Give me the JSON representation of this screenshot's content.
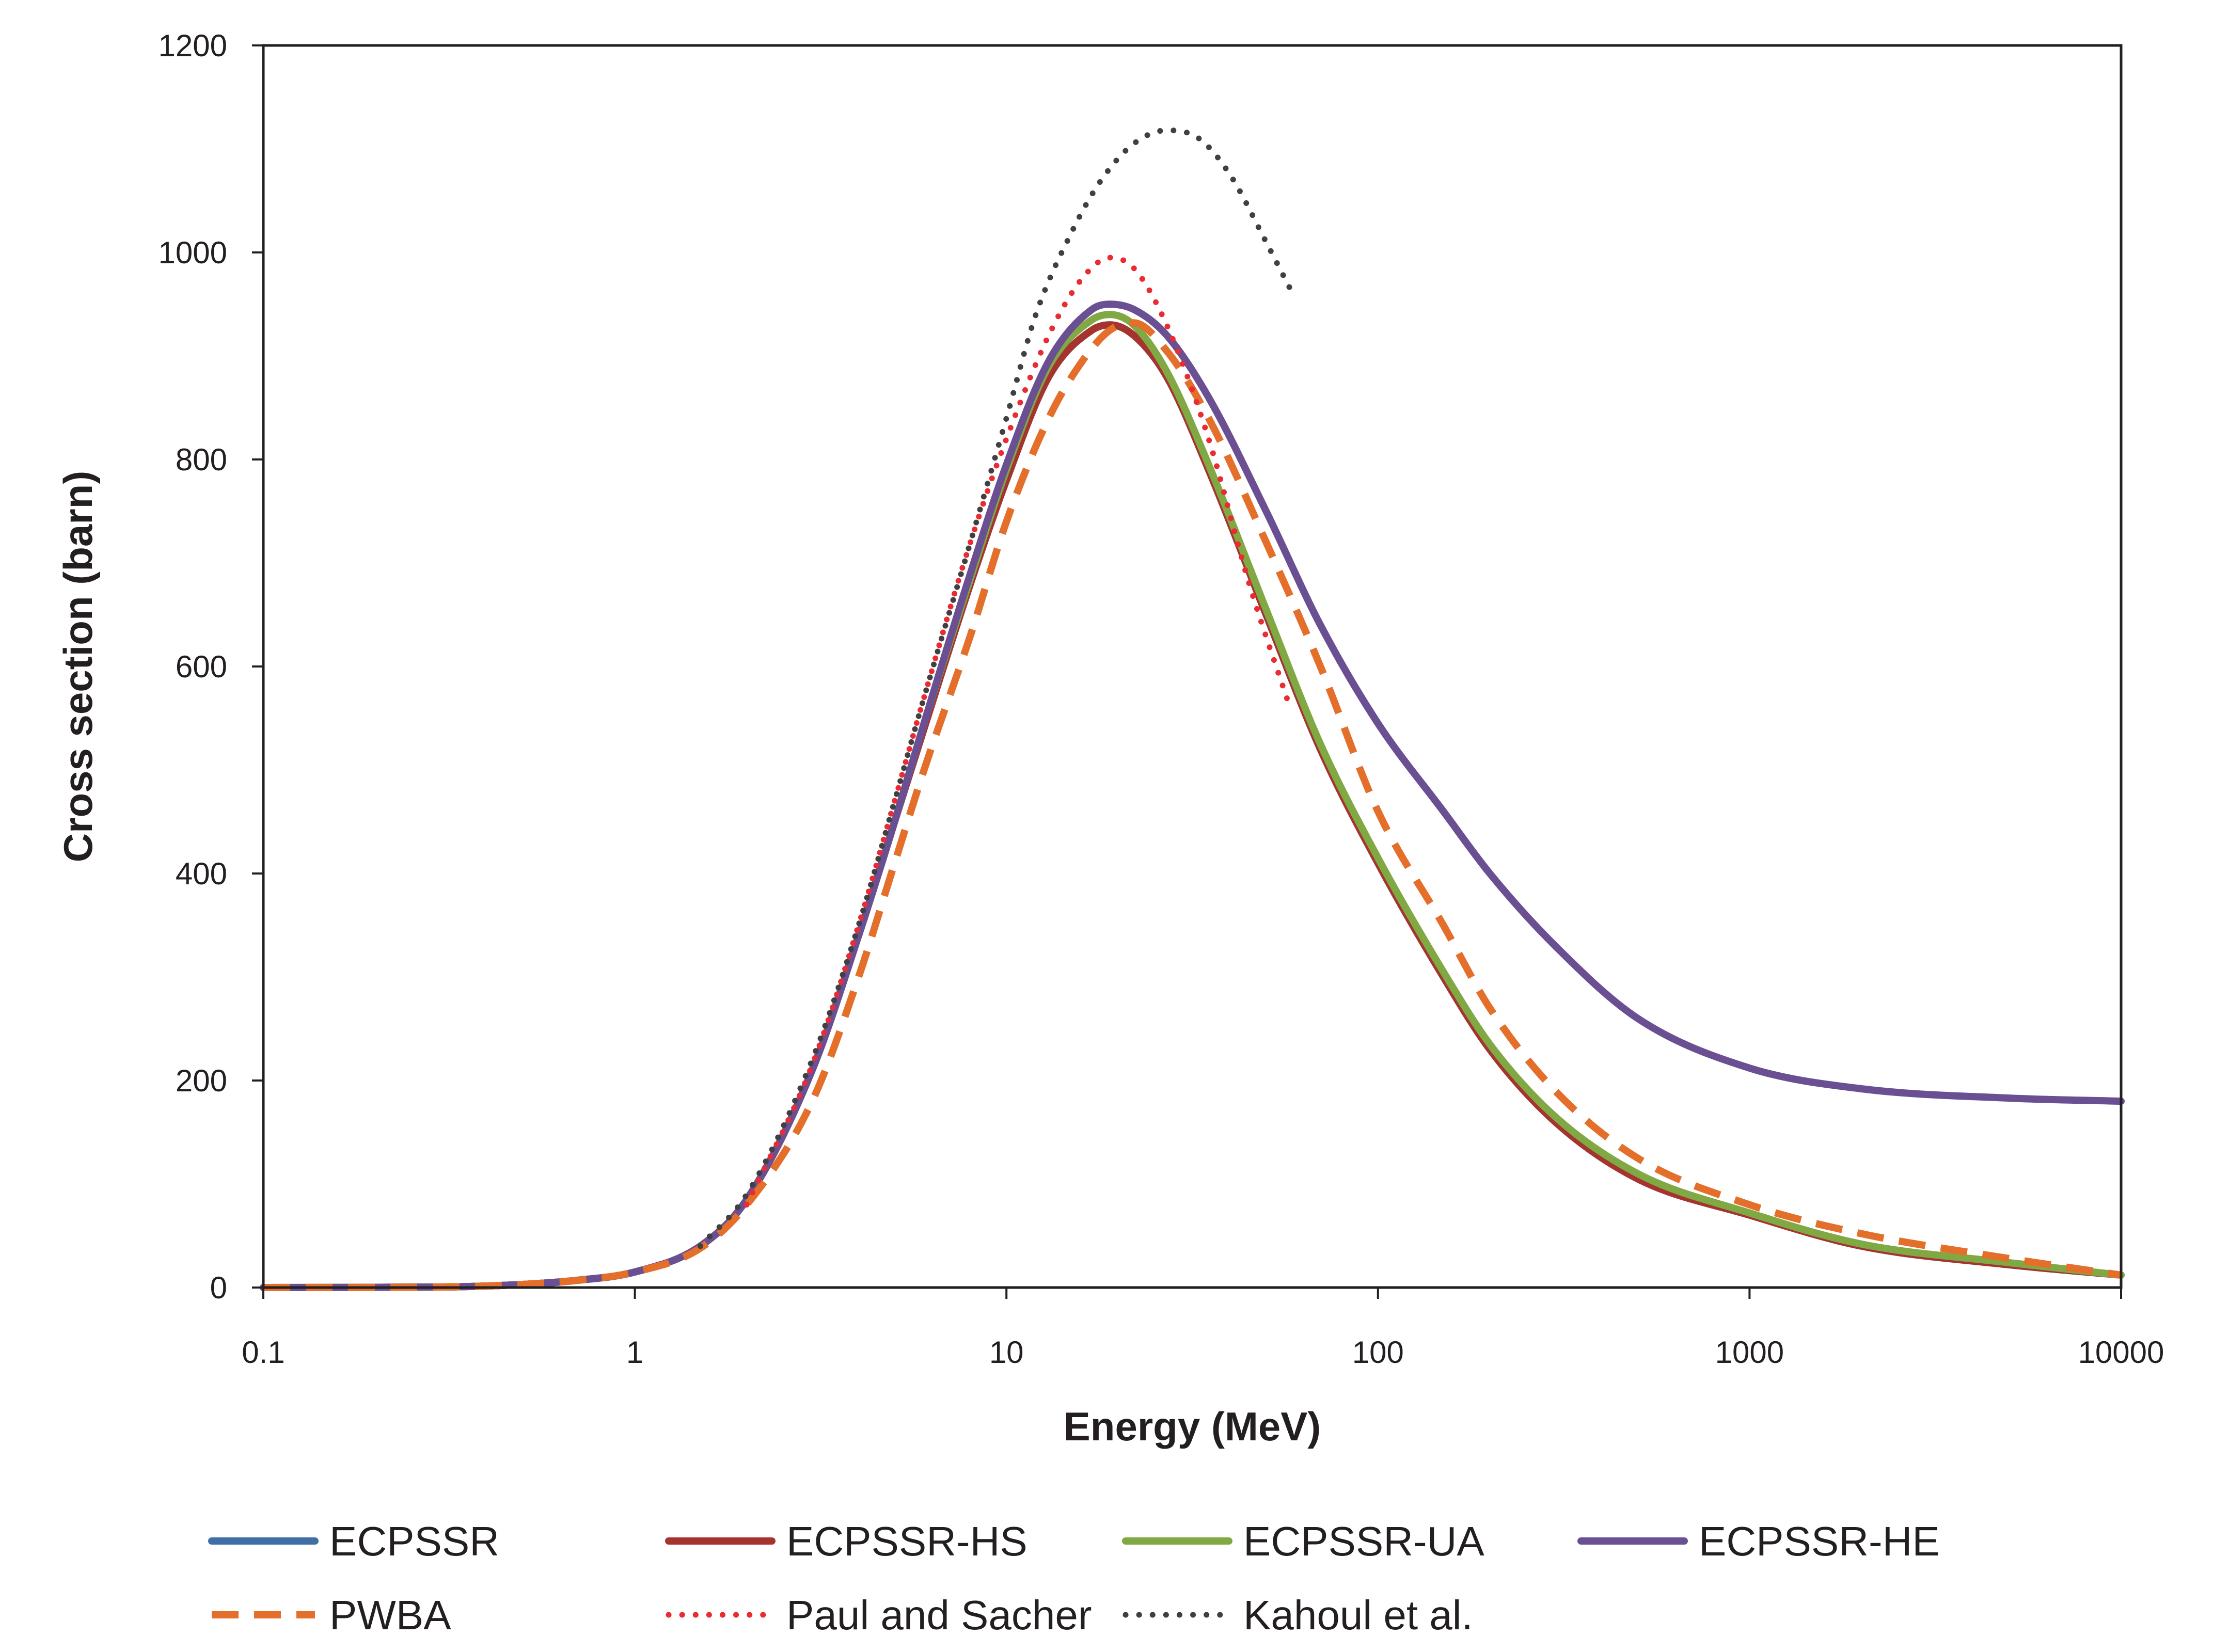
{
  "chart_data": {
    "type": "line",
    "xlabel": "Energy (MeV)",
    "ylabel": "Cross section (barn)",
    "x_scale": "log",
    "xlim": [
      0.1,
      10000
    ],
    "ylim": [
      0,
      1200
    ],
    "x_ticks": [
      "0.1",
      "1",
      "10",
      "100",
      "1000",
      "10000"
    ],
    "y_ticks": [
      "0",
      "200",
      "400",
      "600",
      "800",
      "1000",
      "1200"
    ],
    "grid": false,
    "legend_position": "bottom",
    "series": [
      {
        "name": "ECPSSR",
        "color": "#3f6fa5",
        "style": "solid",
        "points": [
          [
            0.1,
            0
          ],
          [
            0.3,
            0.5
          ],
          [
            0.5,
            3
          ],
          [
            0.7,
            7
          ],
          [
            1,
            15
          ],
          [
            1.5,
            40
          ],
          [
            2,
            85
          ],
          [
            3,
            210
          ],
          [
            4,
            340
          ],
          [
            5,
            450
          ],
          [
            6,
            540
          ],
          [
            8,
            680
          ],
          [
            10,
            780
          ],
          [
            13,
            880
          ],
          [
            17,
            925
          ],
          [
            19,
            930
          ],
          [
            22,
            920
          ],
          [
            27,
            880
          ],
          [
            35,
            790
          ],
          [
            50,
            650
          ],
          [
            70,
            520
          ],
          [
            100,
            410
          ],
          [
            150,
            300
          ],
          [
            200,
            230
          ],
          [
            300,
            160
          ],
          [
            500,
            105
          ],
          [
            1000,
            70
          ],
          [
            2000,
            40
          ],
          [
            5000,
            22
          ],
          [
            10000,
            12
          ]
        ]
      },
      {
        "name": "ECPSSR-HS",
        "color": "#a5342f",
        "style": "solid",
        "points": [
          [
            0.1,
            0
          ],
          [
            0.3,
            0.5
          ],
          [
            0.5,
            3
          ],
          [
            0.7,
            7
          ],
          [
            1,
            15
          ],
          [
            1.5,
            40
          ],
          [
            2,
            85
          ],
          [
            3,
            210
          ],
          [
            4,
            340
          ],
          [
            5,
            450
          ],
          [
            6,
            540
          ],
          [
            8,
            680
          ],
          [
            10,
            780
          ],
          [
            13,
            880
          ],
          [
            17,
            925
          ],
          [
            19,
            930
          ],
          [
            22,
            920
          ],
          [
            27,
            880
          ],
          [
            35,
            790
          ],
          [
            50,
            650
          ],
          [
            70,
            520
          ],
          [
            100,
            410
          ],
          [
            150,
            300
          ],
          [
            200,
            230
          ],
          [
            300,
            160
          ],
          [
            500,
            105
          ],
          [
            1000,
            70
          ],
          [
            2000,
            40
          ],
          [
            5000,
            22
          ],
          [
            10000,
            12
          ]
        ]
      },
      {
        "name": "ECPSSR-UA",
        "color": "#80a843",
        "style": "solid",
        "points": [
          [
            0.1,
            0
          ],
          [
            0.3,
            0.5
          ],
          [
            0.5,
            3
          ],
          [
            0.7,
            7
          ],
          [
            1,
            15
          ],
          [
            1.5,
            40
          ],
          [
            2,
            85
          ],
          [
            3,
            210
          ],
          [
            4,
            340
          ],
          [
            5,
            450
          ],
          [
            6,
            545
          ],
          [
            8,
            685
          ],
          [
            10,
            790
          ],
          [
            13,
            890
          ],
          [
            17,
            935
          ],
          [
            19,
            940
          ],
          [
            22,
            930
          ],
          [
            27,
            885
          ],
          [
            35,
            795
          ],
          [
            50,
            655
          ],
          [
            70,
            525
          ],
          [
            100,
            415
          ],
          [
            150,
            305
          ],
          [
            200,
            235
          ],
          [
            300,
            165
          ],
          [
            500,
            110
          ],
          [
            1000,
            72
          ],
          [
            2000,
            42
          ],
          [
            5000,
            24
          ],
          [
            10000,
            12
          ]
        ]
      },
      {
        "name": "ECPSSR-HE",
        "color": "#6a4f92",
        "style": "solid",
        "points": [
          [
            0.1,
            0
          ],
          [
            0.3,
            0.5
          ],
          [
            0.5,
            3
          ],
          [
            0.7,
            7
          ],
          [
            1,
            15
          ],
          [
            1.5,
            40
          ],
          [
            2,
            85
          ],
          [
            3,
            210
          ],
          [
            4,
            340
          ],
          [
            5,
            450
          ],
          [
            6,
            545
          ],
          [
            8,
            690
          ],
          [
            10,
            795
          ],
          [
            13,
            895
          ],
          [
            17,
            945
          ],
          [
            19,
            950
          ],
          [
            22,
            945
          ],
          [
            27,
            920
          ],
          [
            35,
            860
          ],
          [
            50,
            750
          ],
          [
            70,
            640
          ],
          [
            100,
            545
          ],
          [
            150,
            460
          ],
          [
            200,
            400
          ],
          [
            300,
            330
          ],
          [
            500,
            260
          ],
          [
            1000,
            212
          ],
          [
            2000,
            192
          ],
          [
            5000,
            183
          ],
          [
            10000,
            180
          ]
        ]
      },
      {
        "name": "PWBA",
        "color": "#e46f2b",
        "style": "dashed",
        "points": [
          [
            0.1,
            0
          ],
          [
            0.3,
            0.5
          ],
          [
            0.5,
            3
          ],
          [
            0.7,
            7
          ],
          [
            1,
            15
          ],
          [
            1.5,
            38
          ],
          [
            2,
            80
          ],
          [
            3,
            180
          ],
          [
            4,
            300
          ],
          [
            5,
            410
          ],
          [
            6,
            500
          ],
          [
            8,
            630
          ],
          [
            10,
            740
          ],
          [
            13,
            840
          ],
          [
            16,
            895
          ],
          [
            19,
            925
          ],
          [
            22,
            932
          ],
          [
            27,
            905
          ],
          [
            35,
            840
          ],
          [
            50,
            720
          ],
          [
            70,
            600
          ],
          [
            100,
            460
          ],
          [
            150,
            350
          ],
          [
            200,
            270
          ],
          [
            300,
            190
          ],
          [
            500,
            125
          ],
          [
            1000,
            80
          ],
          [
            2000,
            52
          ],
          [
            5000,
            28
          ],
          [
            10000,
            12
          ]
        ]
      },
      {
        "name": "Paul and Sacher",
        "color": "#ea2b33",
        "style": "dotted",
        "points": [
          [
            2,
            80
          ],
          [
            3,
            215
          ],
          [
            4,
            350
          ],
          [
            5,
            470
          ],
          [
            6,
            570
          ],
          [
            8,
            720
          ],
          [
            10,
            820
          ],
          [
            13,
            920
          ],
          [
            16,
            975
          ],
          [
            19,
            995
          ],
          [
            22,
            985
          ],
          [
            27,
            930
          ],
          [
            35,
            820
          ],
          [
            45,
            680
          ],
          [
            58,
            560
          ]
        ]
      },
      {
        "name": "Kahoul et al.",
        "color": "#404041",
        "style": "dotted",
        "points": [
          [
            1.5,
            40
          ],
          [
            2,
            90
          ],
          [
            3,
            220
          ],
          [
            4,
            350
          ],
          [
            5,
            470
          ],
          [
            6,
            570
          ],
          [
            8,
            720
          ],
          [
            10,
            840
          ],
          [
            12,
            940
          ],
          [
            15,
            1020
          ],
          [
            18,
            1070
          ],
          [
            22,
            1105
          ],
          [
            27,
            1118
          ],
          [
            33,
            1110
          ],
          [
            40,
            1075
          ],
          [
            50,
            1010
          ],
          [
            58,
            965
          ]
        ]
      }
    ]
  }
}
